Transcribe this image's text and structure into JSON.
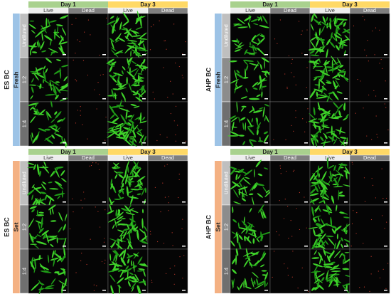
{
  "panels": [
    {
      "material": "ES BC",
      "condition": "Fresh",
      "days": [
        "Day 1",
        "Day 3"
      ],
      "stains": [
        "Live",
        "Dead",
        "Live",
        "Dead"
      ],
      "rows": [
        "Undiluted",
        "1:2",
        "1:4"
      ]
    },
    {
      "material": "AHP BC",
      "condition": "Fresh",
      "days": [
        "Day 1",
        "Day 3"
      ],
      "stains": [
        "Live",
        "Dead",
        "Live",
        "Dead"
      ],
      "rows": [
        "Undiluted",
        "1:2",
        "1:4"
      ]
    },
    {
      "material": "ES BC",
      "condition": "Set",
      "days": [
        "Day 1",
        "Day 3"
      ],
      "stains": [
        "Live",
        "Dead",
        "Live",
        "Dead"
      ],
      "rows": [
        "Undiluted",
        "1:2",
        "1:4"
      ]
    },
    {
      "material": "AHP BC",
      "condition": "Set",
      "days": [
        "Day 1",
        "Day 3"
      ],
      "stains": [
        "Live",
        "Dead",
        "Live",
        "Dead"
      ],
      "rows": [
        "Undiluted",
        "1:2",
        "1:4"
      ]
    }
  ]
}
